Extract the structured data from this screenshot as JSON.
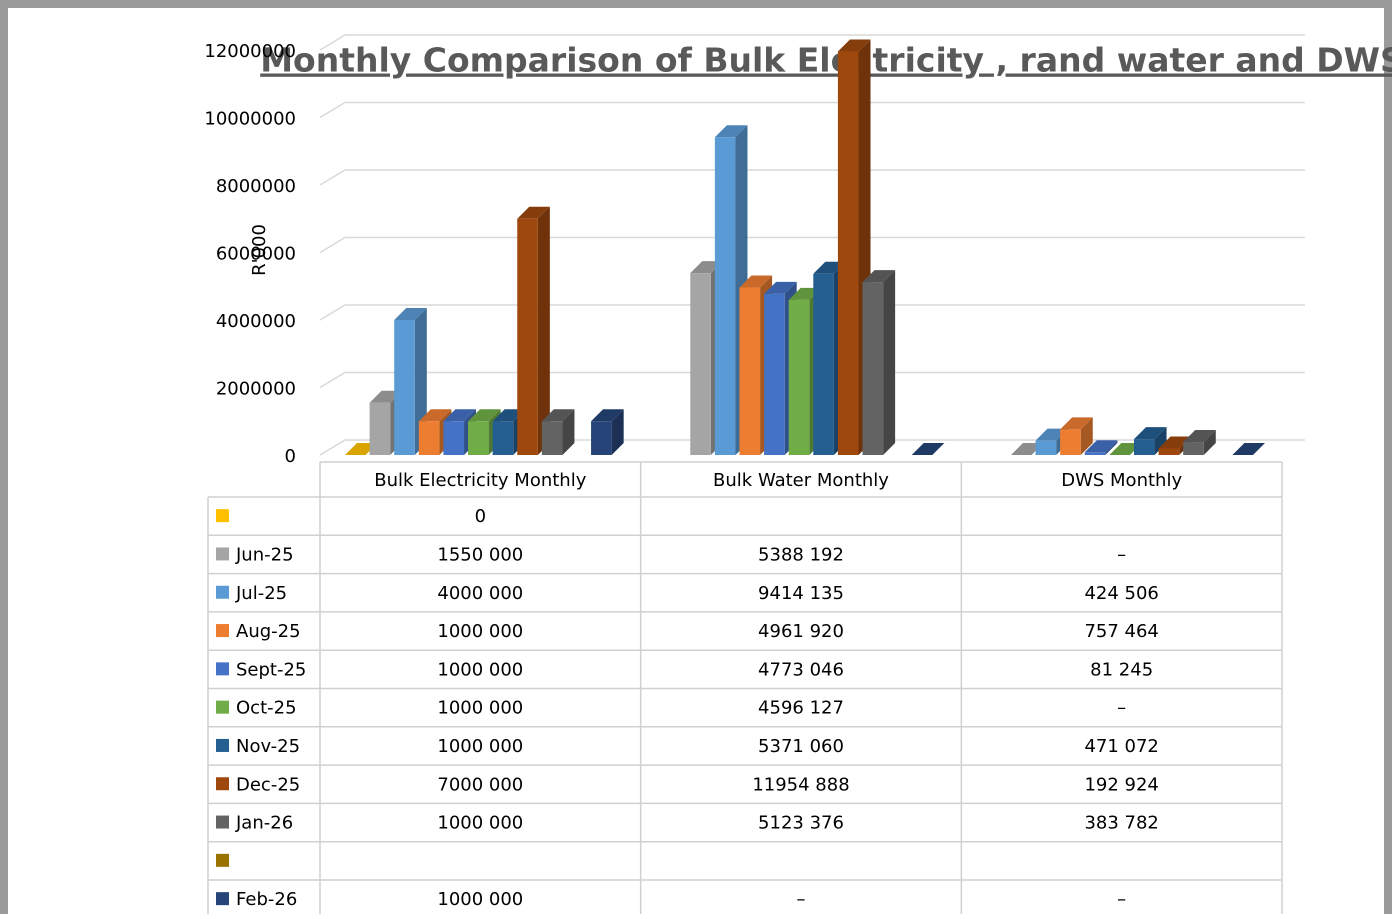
{
  "chart_data": {
    "type": "bar3d",
    "title": "Monthly Comparison of Bulk Electricity , rand water and DWS",
    "y_label": "R'000",
    "categories": [
      "Bulk Electricity Monthly",
      "Bulk Water Monthly",
      "DWS Monthly"
    ],
    "ylim": [
      0,
      12000000
    ],
    "yticks": [
      0,
      2000000,
      4000000,
      6000000,
      8000000,
      10000000,
      12000000
    ],
    "grid": true,
    "series": [
      {
        "name": null,
        "color": "#ffc000",
        "values": [
          0,
          null,
          null
        ],
        "value_labels": [
          "0",
          null,
          null
        ]
      },
      {
        "name": "Jun-25",
        "color": "#a5a5a5",
        "values": [
          1550000,
          5388192,
          0
        ],
        "value_labels": [
          "1550 000",
          "5388 192",
          "–"
        ]
      },
      {
        "name": "Jul-25",
        "color": "#5b9bd5",
        "values": [
          4000000,
          9414135,
          424506
        ],
        "value_labels": [
          "4000 000",
          "9414 135",
          "424 506"
        ]
      },
      {
        "name": "Aug-25",
        "color": "#ed7d31",
        "values": [
          1000000,
          4961920,
          757464
        ],
        "value_labels": [
          "1000 000",
          "4961 920",
          "757 464"
        ]
      },
      {
        "name": "Sept-25",
        "color": "#4472c4",
        "values": [
          1000000,
          4773046,
          81245
        ],
        "value_labels": [
          "1000 000",
          "4773 046",
          "81 245"
        ]
      },
      {
        "name": "Oct-25",
        "color": "#70ad47",
        "values": [
          1000000,
          4596127,
          0
        ],
        "value_labels": [
          "1000 000",
          "4596 127",
          "–"
        ]
      },
      {
        "name": "Nov-25",
        "color": "#255e91",
        "values": [
          1000000,
          5371060,
          471072
        ],
        "value_labels": [
          "1000 000",
          "5371 060",
          "471 072"
        ]
      },
      {
        "name": "Dec-25",
        "color": "#9e480e",
        "values": [
          7000000,
          11954888,
          192924
        ],
        "value_labels": [
          "7000 000",
          "11954 888",
          "192 924"
        ]
      },
      {
        "name": "Jan-26",
        "color": "#636363",
        "values": [
          1000000,
          5123376,
          383782
        ],
        "value_labels": [
          "1000 000",
          "5123 376",
          "383 782"
        ]
      },
      {
        "name": null,
        "color": "#997300",
        "values": [
          null,
          null,
          null
        ],
        "value_labels": [
          null,
          null,
          null
        ]
      },
      {
        "name": "Feb-26",
        "color": "#264478",
        "values": [
          1000000,
          0,
          0
        ],
        "value_labels": [
          "1000 000",
          "–",
          "–"
        ]
      }
    ]
  }
}
